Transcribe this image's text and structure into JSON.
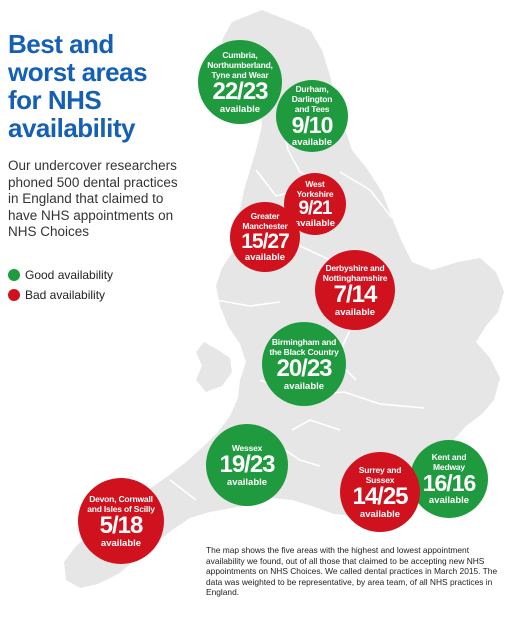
{
  "title": {
    "line1": "Best and",
    "line2": "worst areas",
    "line3": "for NHS",
    "line4": "availability"
  },
  "intro": "Our undercover researchers phoned 500 dental practices in England that claimed to have NHS appointments on NHS Choices",
  "legend": {
    "good": "Good availability",
    "bad": "Bad availability",
    "good_color": "#1f9a3f",
    "bad_color": "#d0121e"
  },
  "areas": [
    {
      "name": "Cumbria,\nNorthumberland,\nTyne and Wear",
      "value": "22/23",
      "label": "available",
      "status": "good"
    },
    {
      "name": "Durham,\nDarlington\nand Tees",
      "value": "9/10",
      "label": "available",
      "status": "good"
    },
    {
      "name": "West\nYorkshire",
      "value": "9/21",
      "label": "available",
      "status": "bad"
    },
    {
      "name": "Greater\nManchester",
      "value": "15/27",
      "label": "available",
      "status": "bad"
    },
    {
      "name": "Derbyshire and\nNottinghamshire",
      "value": "7/14",
      "label": "available",
      "status": "bad"
    },
    {
      "name": "Birmingham and\nthe Black Country",
      "value": "20/23",
      "label": "available",
      "status": "good"
    },
    {
      "name": "Wessex",
      "value": "19/23",
      "label": "available",
      "status": "good"
    },
    {
      "name": "Kent and\nMedway",
      "value": "16/16",
      "label": "available",
      "status": "good"
    },
    {
      "name": "Surrey and\nSussex",
      "value": "14/25",
      "label": "available",
      "status": "bad"
    },
    {
      "name": "Devon, Cornwall\nand Isles of Scilly",
      "value": "5/18",
      "label": "available",
      "status": "bad"
    }
  ],
  "note": "The map shows the five areas with the highest and lowest appointment availability we found, out of all those that claimed to be accepting new NHS appointments on NHS Choices. We called dental practices in March 2015. The data was weighted to be representative, by area team, of all NHS practices in England."
}
